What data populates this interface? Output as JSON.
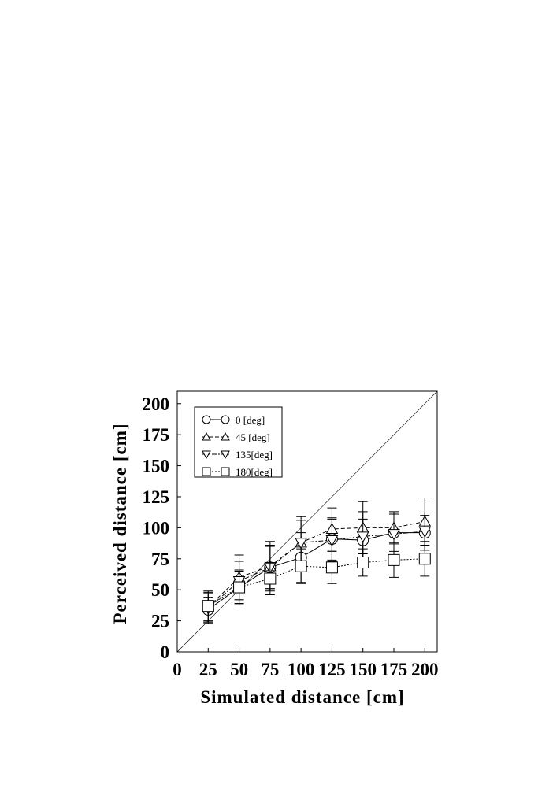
{
  "chart_data": {
    "type": "line",
    "x_label": "Simulated distance [cm]",
    "y_label": "Perceived distance [cm]",
    "x": [
      25,
      50,
      75,
      100,
      125,
      150,
      175,
      200
    ],
    "xlim": [
      0,
      210
    ],
    "ylim": [
      0,
      210
    ],
    "xticks": [
      0,
      25,
      50,
      75,
      100,
      125,
      150,
      175,
      200
    ],
    "yticks": [
      0,
      25,
      50,
      75,
      100,
      125,
      150,
      175,
      200
    ],
    "identity_line": true,
    "legend_position": "upper-left",
    "series": [
      {
        "name": "0 [deg]",
        "color": "#000000",
        "marker": "circle",
        "dash": "solid",
        "values": [
          34,
          52,
          68,
          76,
          91,
          90,
          96,
          96
        ],
        "errors": [
          10,
          14,
          17,
          20,
          17,
          17,
          15,
          14
        ]
      },
      {
        "name": "45 [deg]",
        "color": "#000000",
        "marker": "triangle-up",
        "dash": "dashed",
        "values": [
          36,
          60,
          69,
          88,
          99,
          100,
          100,
          105
        ],
        "errors": [
          12,
          18,
          20,
          21,
          17,
          21,
          13,
          19
        ]
      },
      {
        "name": "135[deg]",
        "color": "#000000",
        "marker": "triangle-down",
        "dash": "dashdot",
        "values": [
          35,
          57,
          68,
          88,
          90,
          93,
          95,
          97
        ],
        "errors": [
          12,
          16,
          18,
          18,
          17,
          20,
          17,
          15
        ]
      },
      {
        "name": "180[deg]",
        "color": "#000000",
        "marker": "square",
        "dash": "dotted",
        "values": [
          37,
          52,
          59,
          69,
          68,
          72,
          74,
          75
        ],
        "errors": [
          12,
          13,
          13,
          14,
          13,
          11,
          14,
          14
        ]
      }
    ]
  }
}
